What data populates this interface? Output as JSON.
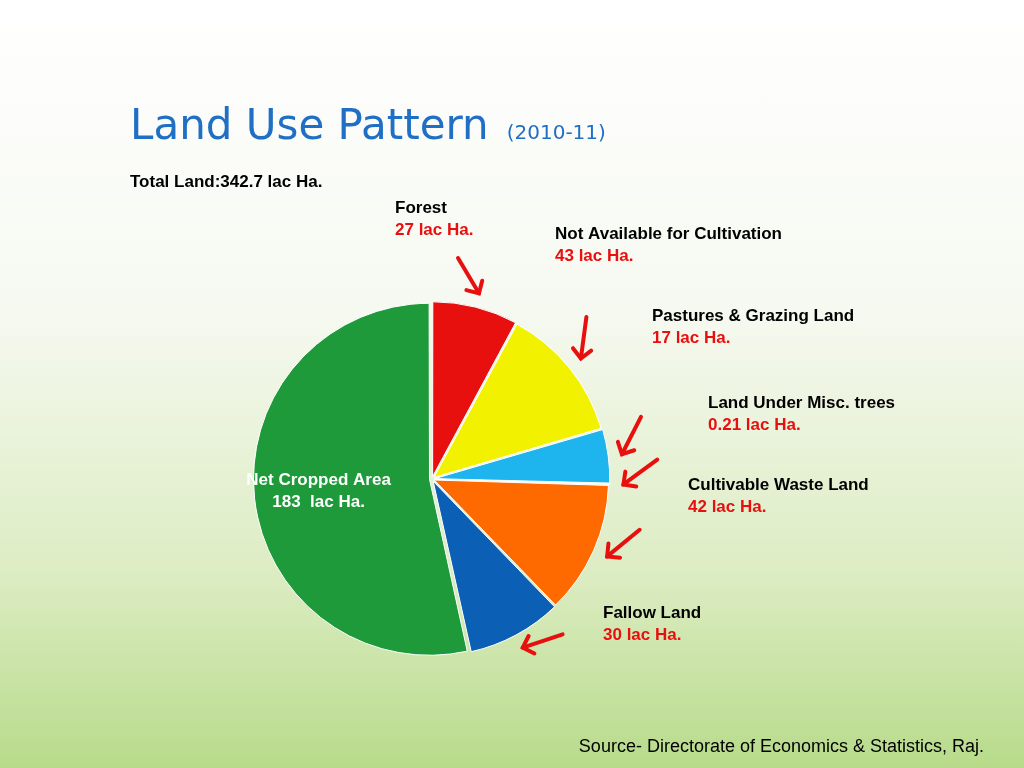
{
  "chart_data": {
    "type": "pie",
    "title": "Land Use Pattern",
    "subtitle": "(2010-11)",
    "annotations": [
      "Total Land:342.7 lac Ha."
    ],
    "source": "Source- Directorate of Economics & Statistics, Raj.",
    "categories": [
      "Forest",
      "Not Available for Cultivation",
      "Pastures & Grazing Land",
      "Land Under Misc. trees",
      "Cultivable Waste Land",
      "Fallow Land",
      "Net Cropped Area"
    ],
    "values": [
      27,
      43,
      17,
      0.21,
      42,
      30,
      183
    ],
    "value_labels": [
      "27 lac Ha.",
      "43 lac Ha.",
      "17 lac Ha.",
      "0.21 lac Ha.",
      "42 lac Ha.",
      "30 lac Ha.",
      "183  lac Ha."
    ],
    "colors": [
      "#e8100f",
      "#f2f200",
      "#1eb4ee",
      "#7b3fb5",
      "#ff6a00",
      "#0b5fb5",
      "#1f9a3a"
    ],
    "data_labels": true,
    "legend": false
  }
}
